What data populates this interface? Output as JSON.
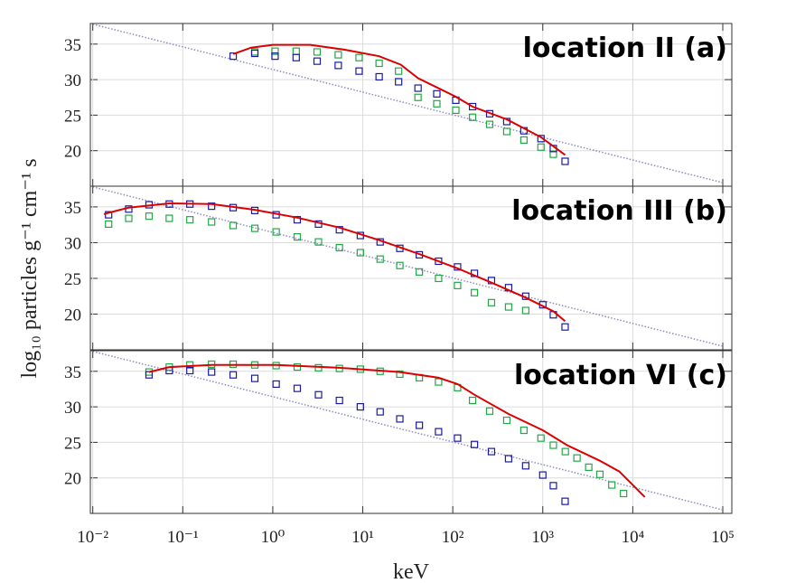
{
  "chart_data": [
    {
      "type": "line",
      "title": "location II  (a)",
      "xlim": [
        0.0094,
        126000
      ],
      "xscale": "log",
      "xticks": [
        0.01,
        0.1,
        1,
        10,
        100,
        1000,
        10000,
        100000
      ],
      "ylim": [
        15,
        37.9
      ],
      "yticks": [
        20,
        25,
        30,
        35
      ],
      "grid": true,
      "series": [
        {
          "color": "#8c8cc4",
          "mode": "lines",
          "linestyle": "dotted",
          "x": [
            0.01,
            100000
          ],
          "values": [
            37.8,
            15.5
          ]
        },
        {
          "color": "#22a845",
          "mode": "markers",
          "marker": "square",
          "x": [
            0.631,
            1.06,
            1.82,
            3.11,
            5.34,
            9.1,
            15.2,
            25.0,
            41.1,
            66.5,
            108,
            166,
            257,
            398,
            617,
            955,
            1310
          ],
          "values": [
            33.9,
            34.0,
            34.0,
            33.9,
            33.5,
            33.1,
            32.3,
            31.2,
            27.5,
            26.6,
            25.7,
            24.7,
            23.7,
            22.7,
            21.5,
            20.5,
            19.5
          ]
        },
        {
          "color": "#1a1aa6",
          "mode": "markers",
          "marker": "square",
          "x": [
            0.363,
            0.631,
            1.06,
            1.82,
            3.11,
            5.34,
            9.1,
            15.2,
            25.0,
            41.1,
            66.5,
            108,
            166,
            257,
            398,
            617,
            955,
            1310,
            1770
          ],
          "values": [
            33.3,
            33.7,
            33.3,
            33.1,
            32.6,
            32.0,
            31.2,
            30.4,
            29.7,
            28.8,
            28.0,
            27.1,
            26.2,
            25.2,
            24.1,
            22.8,
            21.7,
            20.3,
            18.5
          ]
        },
        {
          "color": "#dd0000",
          "mode": "lines",
          "linestyle": "solid",
          "x": [
            0.363,
            0.575,
            1,
            2.6,
            6.4,
            15.2,
            26.5,
            41.1,
            66.5,
            108,
            166,
            398,
            955,
            1770
          ],
          "values": [
            33.6,
            34.5,
            34.9,
            34.9,
            34.2,
            33.3,
            32.1,
            30.2,
            28.9,
            27.6,
            26.2,
            24.4,
            21.9,
            19.4
          ]
        }
      ]
    },
    {
      "type": "line",
      "title": "location III (b)",
      "ylabel": "log₁₀ particles g⁻¹ cm⁻¹ s",
      "xlim": [
        0.0094,
        126000
      ],
      "xscale": "log",
      "xticks": [
        0.01,
        0.1,
        1,
        10,
        100,
        1000,
        10000,
        100000
      ],
      "ylim": [
        15,
        37.9
      ],
      "yticks": [
        20,
        25,
        30,
        35
      ],
      "grid": true,
      "series": [
        {
          "color": "#8c8cc4",
          "mode": "lines",
          "linestyle": "dotted",
          "x": [
            0.01,
            100000
          ],
          "values": [
            37.8,
            15.5
          ]
        },
        {
          "color": "#22a845",
          "mode": "markers",
          "marker": "square",
          "x": [
            0.015,
            0.0251,
            0.0422,
            0.0708,
            0.12,
            0.209,
            0.363,
            0.631,
            1.09,
            1.87,
            3.22,
            5.5,
            9.4,
            15.6,
            25.8,
            42.5,
            69.5,
            113,
            174,
            269,
            417,
            646
          ],
          "values": [
            32.6,
            33.4,
            33.7,
            33.4,
            33.2,
            32.9,
            32.4,
            32.0,
            31.5,
            30.8,
            30.1,
            29.3,
            28.6,
            27.7,
            26.8,
            25.9,
            25.0,
            24.0,
            23.0,
            21.6,
            21.0,
            20.5
          ]
        },
        {
          "color": "#1a1aa6",
          "mode": "markers",
          "marker": "square",
          "x": [
            0.015,
            0.0251,
            0.0422,
            0.0708,
            0.12,
            0.209,
            0.363,
            0.631,
            1.09,
            1.87,
            3.22,
            5.5,
            9.4,
            15.6,
            25.8,
            42.5,
            69.5,
            113,
            174,
            269,
            417,
            646,
            1000,
            1310,
            1770
          ],
          "values": [
            33.9,
            34.7,
            35.3,
            35.4,
            35.4,
            35.1,
            34.9,
            34.5,
            33.9,
            33.2,
            32.6,
            31.8,
            31.0,
            30.1,
            29.2,
            28.3,
            27.4,
            26.6,
            25.7,
            24.7,
            23.7,
            22.5,
            21.3,
            19.9,
            18.2
          ]
        },
        {
          "color": "#dd0000",
          "mode": "lines",
          "linestyle": "solid",
          "x": [
            0.0133,
            0.0251,
            0.0708,
            0.209,
            0.631,
            1.87,
            5.5,
            15.6,
            42.5,
            113,
            269,
            646,
            1310,
            1770
          ],
          "values": [
            34.0,
            34.9,
            35.5,
            35.4,
            34.6,
            33.5,
            32.1,
            30.3,
            28.4,
            26.4,
            24.4,
            22.3,
            20.4,
            19.0
          ]
        }
      ]
    },
    {
      "type": "line",
      "title": "location VI (c)",
      "xlabel": "keV",
      "xlim": [
        0.0094,
        126000
      ],
      "xscale": "log",
      "xticks": [
        {
          "value": 0.01,
          "label": "10⁻²"
        },
        {
          "value": 0.1,
          "label": "10⁻¹"
        },
        {
          "value": 1,
          "label": "10⁰"
        },
        {
          "value": 10,
          "label": "10¹"
        },
        {
          "value": 100,
          "label": "10²"
        },
        {
          "value": 1000,
          "label": "10³"
        },
        {
          "value": 10000,
          "label": "10⁴"
        },
        {
          "value": 100000,
          "label": "10⁵"
        }
      ],
      "ylim": [
        15,
        37.9
      ],
      "yticks": [
        20,
        25,
        30,
        35
      ],
      "grid": true,
      "series": [
        {
          "color": "#8c8cc4",
          "mode": "lines",
          "linestyle": "dotted",
          "x": [
            0.01,
            100000
          ],
          "values": [
            37.8,
            15.5
          ]
        },
        {
          "color": "#22a845",
          "mode": "markers",
          "marker": "square",
          "x": [
            0.0422,
            0.0708,
            0.12,
            0.209,
            0.363,
            0.631,
            1.09,
            1.87,
            3.22,
            5.5,
            9.4,
            15.6,
            25.8,
            42.5,
            69.5,
            113,
            166,
            257,
            398,
            617,
            955,
            1310,
            1780,
            2400,
            3240,
            4310,
            5850,
            7900
          ],
          "values": [
            34.9,
            35.6,
            35.9,
            36.0,
            36.0,
            35.9,
            35.8,
            35.6,
            35.5,
            35.4,
            35.3,
            35.0,
            34.6,
            34.1,
            33.5,
            32.7,
            30.9,
            29.4,
            28.1,
            26.7,
            25.6,
            24.6,
            23.7,
            22.8,
            21.5,
            20.5,
            19.0,
            17.8
          ]
        },
        {
          "color": "#1a1aa6",
          "mode": "markers",
          "marker": "square",
          "x": [
            0.0422,
            0.0708,
            0.12,
            0.209,
            0.363,
            0.631,
            1.09,
            1.87,
            3.22,
            5.5,
            9.4,
            15.6,
            25.8,
            42.5,
            69.5,
            113,
            174,
            269,
            417,
            646,
            1000,
            1310,
            1770
          ],
          "values": [
            34.5,
            35.1,
            35.1,
            34.9,
            34.5,
            34.0,
            33.2,
            32.6,
            31.7,
            30.9,
            30.0,
            29.3,
            28.3,
            27.4,
            26.5,
            25.6,
            24.7,
            23.7,
            22.7,
            21.7,
            20.4,
            18.9,
            16.7
          ]
        },
        {
          "color": "#dd0000",
          "mode": "lines",
          "linestyle": "solid",
          "x": [
            0.0422,
            0.0708,
            0.209,
            1.09,
            5.5,
            25.8,
            69.5,
            113,
            174,
            417,
            1000,
            1860,
            4310,
            7080,
            10000,
            13600
          ],
          "values": [
            34.9,
            35.6,
            35.9,
            35.9,
            35.5,
            34.9,
            34.1,
            33.2,
            31.7,
            29.0,
            26.7,
            24.6,
            22.4,
            20.9,
            19.0,
            17.3
          ]
        }
      ]
    }
  ]
}
